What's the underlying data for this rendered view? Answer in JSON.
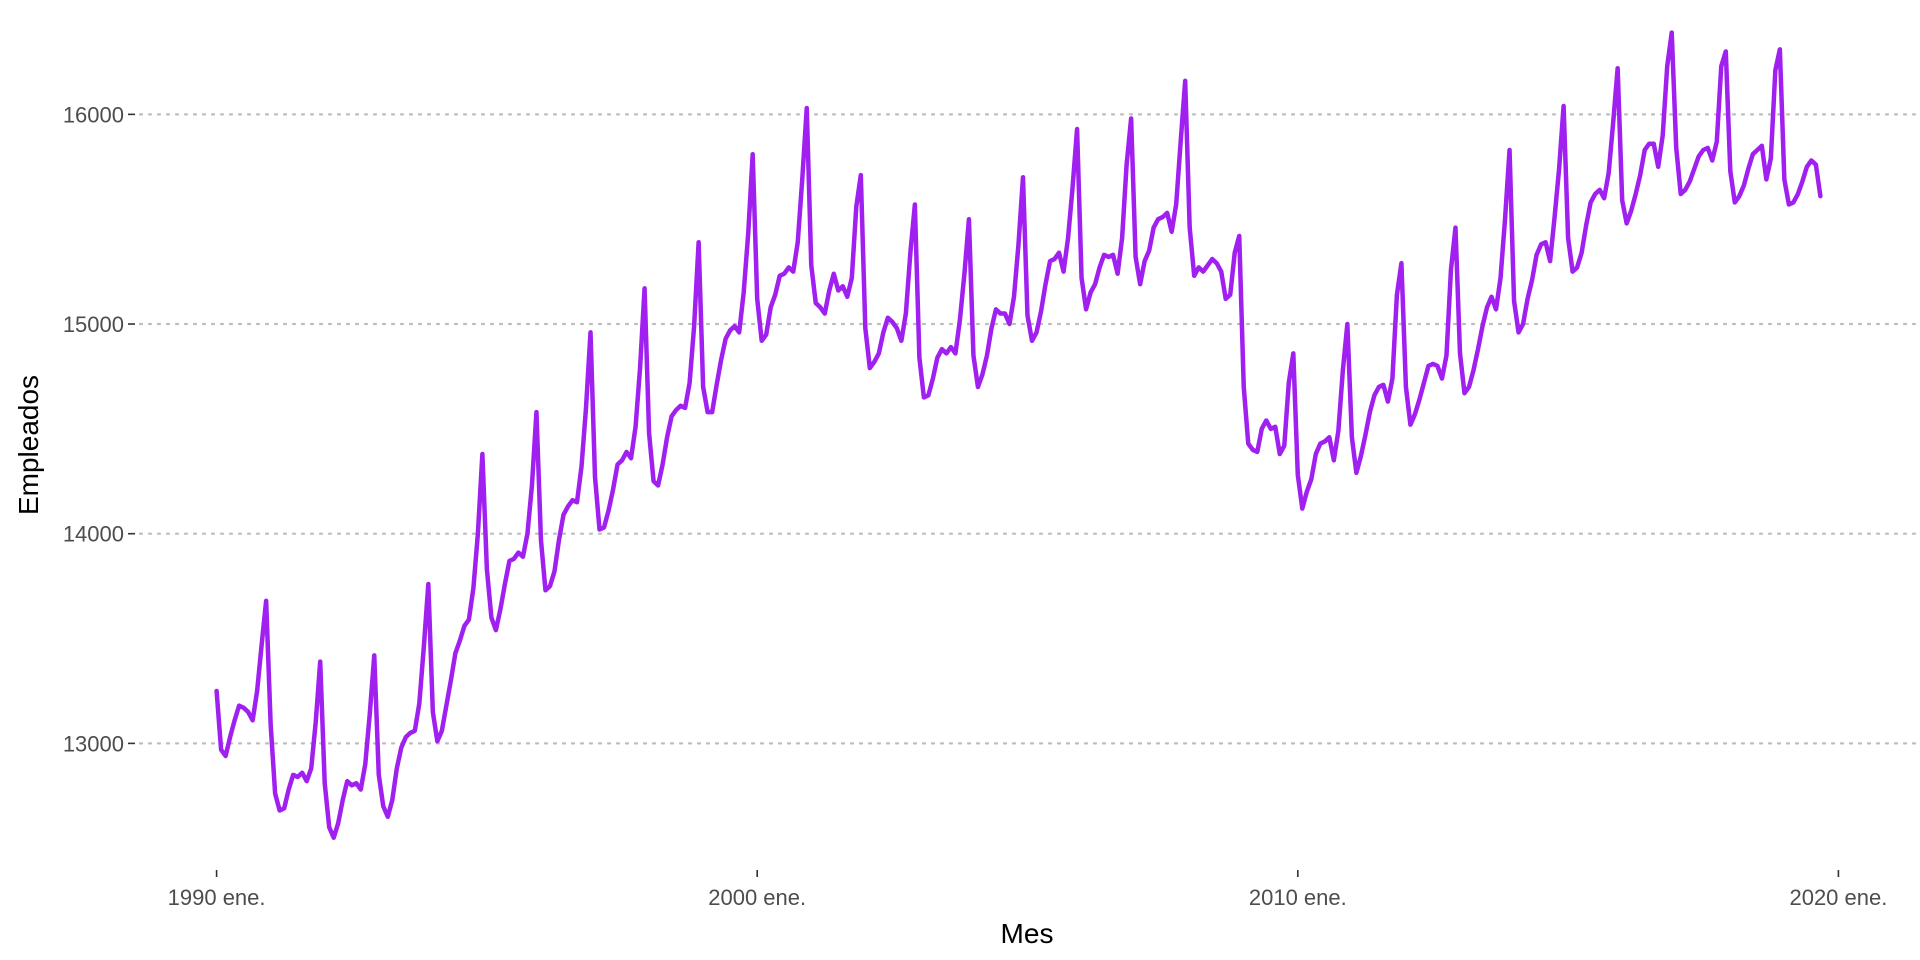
{
  "chart_data": {
    "type": "line",
    "title": "",
    "xlabel": "Mes",
    "ylabel": "Empleados",
    "x_start": "1990-01",
    "x_end": "2019-10",
    "x_frequency": "monthly",
    "xlim": [
      "1988-08",
      "2021-06"
    ],
    "ylim": [
      12420,
      16450
    ],
    "x_ticks": [
      {
        "label": "1990 ene.",
        "date": "1990-01"
      },
      {
        "label": "2000 ene.",
        "date": "2000-01"
      },
      {
        "label": "2010 ene.",
        "date": "2010-01"
      },
      {
        "label": "2020 ene.",
        "date": "2020-01"
      }
    ],
    "y_ticks": [
      {
        "label": "13000",
        "value": 13000
      },
      {
        "label": "14000",
        "value": 14000
      },
      {
        "label": "15000",
        "value": 15000
      },
      {
        "label": "16000",
        "value": 16000
      }
    ],
    "grid": {
      "horizontal": true,
      "vertical": false,
      "style": "dotted"
    },
    "legend": "none",
    "line_color": "#A020F0",
    "series": [
      {
        "values": [
          13250,
          12970,
          12940,
          13030,
          13110,
          13180,
          13170,
          13150,
          13110,
          13250,
          13470,
          13680,
          13090,
          12760,
          12680,
          12690,
          12780,
          12850,
          12840,
          12860,
          12820,
          12880,
          13100,
          13390,
          12810,
          12600,
          12550,
          12620,
          12730,
          12820,
          12800,
          12810,
          12780,
          12900,
          13140,
          13420,
          12850,
          12700,
          12650,
          12730,
          12880,
          12980,
          13030,
          13050,
          13060,
          13190,
          13460,
          13760,
          13150,
          13010,
          13060,
          13180,
          13300,
          13430,
          13490,
          13560,
          13590,
          13740,
          14000,
          14380,
          13830,
          13600,
          13540,
          13640,
          13760,
          13870,
          13880,
          13910,
          13890,
          14000,
          14230,
          14580,
          13970,
          13730,
          13750,
          13820,
          13970,
          14090,
          14130,
          14160,
          14150,
          14320,
          14600,
          14960,
          14270,
          14020,
          14030,
          14110,
          14210,
          14330,
          14350,
          14390,
          14360,
          14510,
          14790,
          15170,
          14480,
          14250,
          14230,
          14330,
          14460,
          14560,
          14590,
          14610,
          14600,
          14720,
          14990,
          15390,
          14700,
          14580,
          14580,
          14710,
          14830,
          14930,
          14970,
          14990,
          14960,
          15150,
          15430,
          15810,
          15120,
          14920,
          14950,
          15080,
          15140,
          15230,
          15240,
          15270,
          15250,
          15390,
          15690,
          16030,
          15280,
          15100,
          15080,
          15050,
          15160,
          15240,
          15160,
          15180,
          15130,
          15220,
          15560,
          15710,
          14980,
          14790,
          14820,
          14860,
          14960,
          15030,
          15010,
          14980,
          14920,
          15050,
          15340,
          15570,
          14840,
          14650,
          14660,
          14740,
          14840,
          14880,
          14860,
          14890,
          14860,
          15020,
          15240,
          15500,
          14850,
          14700,
          14760,
          14850,
          14980,
          15070,
          15050,
          15050,
          15000,
          15130,
          15380,
          15700,
          15040,
          14920,
          14960,
          15060,
          15190,
          15300,
          15310,
          15340,
          15250,
          15410,
          15650,
          15930,
          15220,
          15070,
          15150,
          15190,
          15270,
          15330,
          15320,
          15330,
          15240,
          15410,
          15760,
          15980,
          15320,
          15190,
          15300,
          15350,
          15460,
          15500,
          15510,
          15530,
          15440,
          15570,
          15870,
          16160,
          15460,
          15230,
          15270,
          15250,
          15280,
          15310,
          15290,
          15250,
          15120,
          15140,
          15340,
          15420,
          14700,
          14430,
          14400,
          14390,
          14500,
          14540,
          14500,
          14510,
          14380,
          14420,
          14720,
          14860,
          14280,
          14120,
          14200,
          14260,
          14380,
          14430,
          14440,
          14460,
          14350,
          14490,
          14780,
          15000,
          14460,
          14290,
          14370,
          14470,
          14580,
          14660,
          14700,
          14710,
          14630,
          14740,
          15140,
          15290,
          14700,
          14520,
          14570,
          14640,
          14720,
          14800,
          14810,
          14800,
          14740,
          14850,
          15260,
          15460,
          14860,
          14670,
          14700,
          14780,
          14880,
          14990,
          15080,
          15130,
          15070,
          15220,
          15500,
          15830,
          15110,
          14960,
          15000,
          15120,
          15210,
          15330,
          15380,
          15390,
          15300,
          15510,
          15740,
          16040,
          15410,
          15250,
          15270,
          15340,
          15470,
          15580,
          15620,
          15640,
          15600,
          15720,
          15960,
          16220,
          15590,
          15480,
          15540,
          15620,
          15710,
          15830,
          15860,
          15860,
          15750,
          15900,
          16230,
          16390,
          15840,
          15620,
          15640,
          15680,
          15740,
          15800,
          15830,
          15840,
          15780,
          15870,
          16230,
          16300,
          15730,
          15580,
          15610,
          15660,
          15740,
          15810,
          15830,
          15850,
          15690,
          15790,
          16210,
          16310,
          15690,
          15570,
          15580,
          15620,
          15680,
          15750,
          15780,
          15760,
          15610
        ]
      }
    ]
  }
}
